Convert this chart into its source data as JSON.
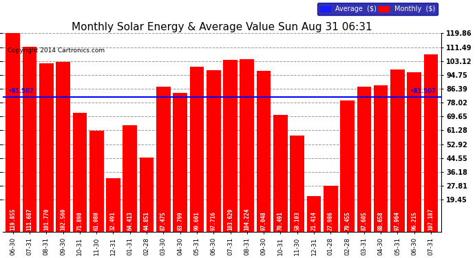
{
  "title": "Monthly Solar Energy & Average Value Sun Aug 31 06:31",
  "copyright": "Copyright 2014 Cartronics.com",
  "categories": [
    "06-30",
    "07-31",
    "08-31",
    "09-30",
    "10-31",
    "11-30",
    "12-31",
    "01-31",
    "02-28",
    "03-30",
    "04-30",
    "05-31",
    "06-30",
    "07-31",
    "08-31",
    "09-30",
    "10-31",
    "11-30",
    "12-31",
    "01-28",
    "02-28",
    "03-31",
    "04-30",
    "05-31",
    "06-30",
    "07-31"
  ],
  "values": [
    119.855,
    111.687,
    101.77,
    102.56,
    71.89,
    61.08,
    32.491,
    64.413,
    44.851,
    87.475,
    83.799,
    99.601,
    97.716,
    103.629,
    104.224,
    97.048,
    70.491,
    58.103,
    21.414,
    27.986,
    79.455,
    87.605,
    88.658,
    97.964,
    96.215,
    107.187
  ],
  "average_value": 81.507,
  "average_label": "81.507",
  "bar_color": "#ff0000",
  "average_line_color": "#0000ff",
  "background_color": "#ffffff",
  "plot_bg_color": "#ffffff",
  "grid_color": "#999999",
  "ylim_min": 0,
  "ylim_max": 119.86,
  "yticks": [
    19.45,
    27.81,
    36.18,
    44.55,
    52.92,
    61.28,
    69.65,
    78.02,
    86.39,
    94.75,
    103.12,
    111.49,
    119.86
  ],
  "legend_average_color": "#1a1aff",
  "legend_monthly_color": "#ff0000",
  "legend_bg_color": "#000099",
  "right_axis_labels": [
    "19.45",
    "27.81",
    "36.18",
    "44.55",
    "52.92",
    "61.28",
    "69.65",
    "78.02",
    "86.39",
    "94.75",
    "103.12",
    "111.49",
    "119.86"
  ],
  "title_fontsize": 11,
  "tick_fontsize": 7,
  "bar_label_fontsize": 5.5,
  "copyright_fontsize": 6.5
}
